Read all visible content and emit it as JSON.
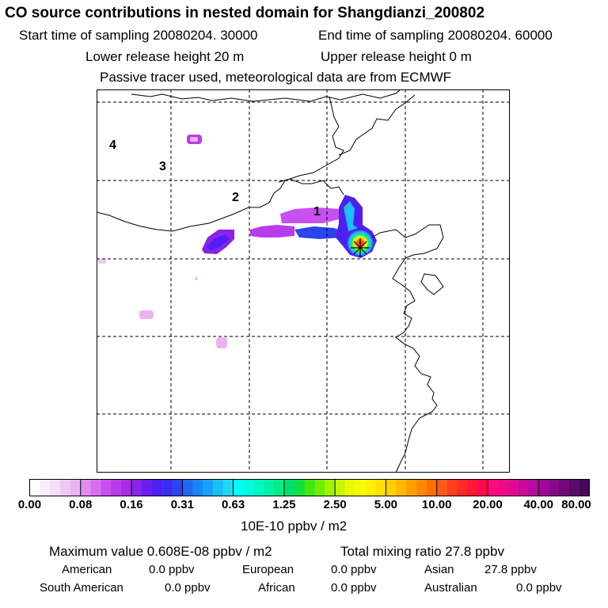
{
  "header": {
    "title": "CO  source contributions in nested domain for Shangdianzi_200802",
    "start_label": "Start time of sampling 20080204. 30000",
    "end_label": "End time of sampling 20080204. 60000",
    "lower_label": "Lower release height   20 m",
    "upper_label": "Upper release height    0 m",
    "info": "Passive tracer used, meteorological data are from ECMWF"
  },
  "map": {
    "region_labels": [
      "1",
      "2",
      "3",
      "4"
    ],
    "marker": "star-marker"
  },
  "colorbar": {
    "ticks": [
      "0.00",
      "0.08",
      "0.16",
      "0.31",
      "0.63",
      "1.25",
      "2.50",
      "5.00",
      "10.00",
      "20.00",
      "40.00",
      "80.00"
    ],
    "unit": "10E-10 ppbv / m2",
    "colors": [
      [
        "#ffffff",
        "#fbeefb",
        "#f6ddf8",
        "#f0c8f4",
        "#e9b3f0"
      ],
      [
        "#df8ef0",
        "#d56ff0",
        "#c850ee",
        "#b83cea",
        "#a82be6"
      ],
      [
        "#8a22ea",
        "#6c1ef0",
        "#4f1ff2",
        "#3a2ef2",
        "#2c44ee"
      ],
      [
        "#1f66f2",
        "#1b85f6",
        "#17a3f8",
        "#1bbff6",
        "#1fd7f2"
      ],
      [
        "#00ffff",
        "#00fde0",
        "#00f8c0",
        "#00f2a4",
        "#00ec88"
      ],
      [
        "#00e070",
        "#10e040",
        "#40e810",
        "#70f000",
        "#a0f400"
      ],
      [
        "#c8f800",
        "#e8fc00",
        "#f8fc00",
        "#fff000",
        "#ffe000"
      ],
      [
        "#ffd000",
        "#ffb800",
        "#ffa000",
        "#ff8a00",
        "#ff7000"
      ],
      [
        "#ff5a1a",
        "#ff4020",
        "#ff2a28",
        "#ff1838",
        "#ff0a48"
      ],
      [
        "#ff0a78",
        "#f00a88",
        "#e00a90",
        "#cc0a98",
        "#b80aa0"
      ],
      [
        "#a00898",
        "#880a88",
        "#700a78",
        "#5a0a68",
        "#440a58"
      ]
    ]
  },
  "stats": {
    "maximum": "Maximum value  0.608E-08 ppbv / m2",
    "total": "Total mixing ratio      27.8 ppbv"
  },
  "sources": [
    {
      "name": "American",
      "value": "0.0 ppbv"
    },
    {
      "name": "European",
      "value": "0.0 ppbv"
    },
    {
      "name": "Asian",
      "value": "27.8 ppbv"
    },
    {
      "name": "South American",
      "value": "0.0 ppbv"
    },
    {
      "name": "African",
      "value": "0.0 ppbv"
    },
    {
      "name": "Australian",
      "value": "0.0 ppbv"
    }
  ]
}
